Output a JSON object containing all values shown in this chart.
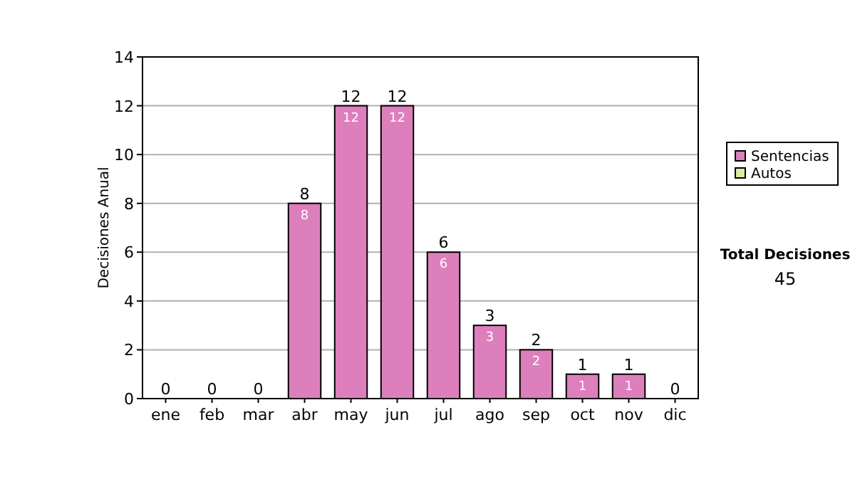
{
  "chart_data": {
    "type": "bar",
    "ylabel": "Decisiones Anual",
    "categories": [
      "ene",
      "feb",
      "mar",
      "abr",
      "may",
      "jun",
      "jul",
      "ago",
      "sep",
      "oct",
      "nov",
      "dic"
    ],
    "series": [
      {
        "name": "Sentencias",
        "color": "#dd7fbd",
        "values": [
          0,
          0,
          0,
          8,
          12,
          12,
          6,
          3,
          2,
          1,
          1,
          0
        ],
        "value_labels": [
          null,
          null,
          null,
          "8",
          "12",
          "12",
          "6",
          "3",
          "2",
          "1",
          "1",
          null
        ]
      },
      {
        "name": "Autos",
        "color": "#d9ec9e",
        "values": [
          0,
          0,
          0,
          0,
          0,
          0,
          0,
          0,
          0,
          0,
          0,
          0
        ]
      }
    ],
    "stacked": true,
    "totals": [
      "0",
      "0",
      "0",
      "8",
      "12",
      "12",
      "6",
      "3",
      "2",
      "1",
      "1",
      "0"
    ],
    "ylim": [
      0,
      14
    ],
    "yticks": [
      0,
      2,
      4,
      6,
      8,
      10,
      12,
      14
    ],
    "grid": "y",
    "legend": "right",
    "annotations": [
      "Total Decisiones",
      "45"
    ]
  }
}
